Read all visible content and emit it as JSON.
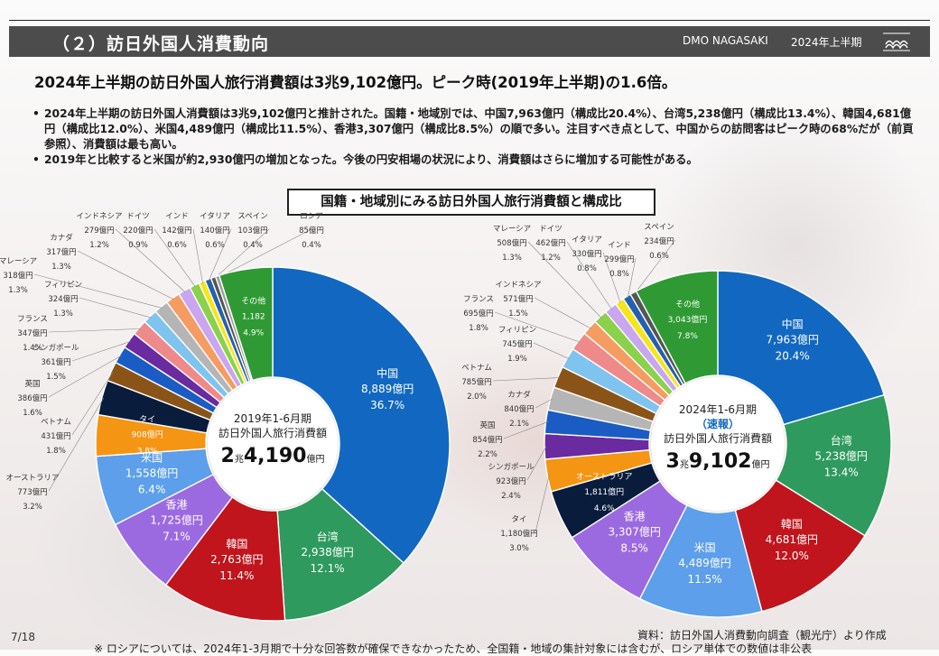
{
  "header": {
    "section_title": "（２）訪日外国人消費動向",
    "org": "DMO NAGASAKI",
    "period": "2024年上半期"
  },
  "headline": "2024年上半期の訪日外国人旅行消費額は3兆9,102億円。ピーク時(2019年上半期)の1.6倍。",
  "bullets": [
    "2024年上半期の訪日外国人消費額は3兆9,102億円と推計された。国籍・地域別では、中国7,963億円（構成比20.4%）、台湾5,238億円（構成比13.4%）、韓国4,681億円（構成比12.0%）、米国4,489億円（構成比11.5%）、香港3,307億円（構成比8.5%）の順で多い。注目すべき点として、中国からの訪問客はピーク時の68%だが（前頁参照）、消費額は最も高い。",
    "2019年と比較すると米国が約2,930億円の増加となった。今後の円安相場の状況により、消費額はさらに増加する可能性がある。"
  ],
  "chart_section_title": "国籍・地域別にみる訪日外国人旅行消費額と構成比",
  "chart_data": [
    {
      "type": "pie",
      "center_lines": [
        "2019年1-6月期",
        "訪日外国人旅行消費額"
      ],
      "center_total": {
        "big1": "2",
        "small1": "兆",
        "big2": "4,190",
        "small2": "億円"
      },
      "unit": "億円",
      "slices": [
        {
          "name": "中国",
          "value": 8889,
          "value_label": "8,889億円",
          "pct_label": "36.7%",
          "color": "#1268c0"
        },
        {
          "name": "台湾",
          "value": 2938,
          "value_label": "2,938億円",
          "pct_label": "12.1%",
          "color": "#2e9a5e"
        },
        {
          "name": "韓国",
          "value": 2763,
          "value_label": "2,763億円",
          "pct_label": "11.4%",
          "color": "#c0151c"
        },
        {
          "name": "香港",
          "value": 1725,
          "value_label": "1,725億円",
          "pct_label": "7.1%",
          "color": "#9c6ae0"
        },
        {
          "name": "米国",
          "value": 1558,
          "value_label": "1,558億円",
          "pct_label": "6.4%",
          "color": "#5d9fea"
        },
        {
          "name": "タイ",
          "value": 908,
          "value_label": "908億円",
          "pct_label": "3.8%",
          "color": "#f49513"
        },
        {
          "name": "オーストラリア",
          "value": 773,
          "value_label": "773億円",
          "pct_label": "3.2%",
          "color": "#091c3c"
        },
        {
          "name": "ベトナム",
          "value": 431,
          "value_label": "431億円",
          "pct_label": "1.8%",
          "color": "#8a5418"
        },
        {
          "name": "英国",
          "value": 386,
          "value_label": "386億円",
          "pct_label": "1.6%",
          "color": "#1a5cc4"
        },
        {
          "name": "シンガポール",
          "value": 361,
          "value_label": "361億円",
          "pct_label": "1.5%",
          "color": "#6a2aa0"
        },
        {
          "name": "フランス",
          "value": 347,
          "value_label": "347億円",
          "pct_label": "1.4%",
          "color": "#ef8a8a"
        },
        {
          "name": "フィリピン",
          "value": 324,
          "value_label": "324億円",
          "pct_label": "1.3%",
          "color": "#7ec4ee"
        },
        {
          "name": "マレーシア",
          "value": 318,
          "value_label": "318億円",
          "pct_label": "1.3%",
          "color": "#b5b5b5"
        },
        {
          "name": "カナダ",
          "value": 317,
          "value_label": "317億円",
          "pct_label": "1.3%",
          "color": "#f59c62"
        },
        {
          "name": "インドネシア",
          "value": 279,
          "value_label": "279億円",
          "pct_label": "1.2%",
          "color": "#c9a6ef"
        },
        {
          "name": "ドイツ",
          "value": 220,
          "value_label": "220億円",
          "pct_label": "0.9%",
          "color": "#8bd14c"
        },
        {
          "name": "インド",
          "value": 142,
          "value_label": "142億円",
          "pct_label": "0.6%",
          "color": "#f4e51c"
        },
        {
          "name": "イタリア",
          "value": 140,
          "value_label": "140億円",
          "pct_label": "0.6%",
          "color": "#2560b0"
        },
        {
          "name": "スペイン",
          "value": 103,
          "value_label": "103億円",
          "pct_label": "0.4%",
          "color": "#555555"
        },
        {
          "name": "ロシア",
          "value": 85,
          "value_label": "85億円",
          "pct_label": "0.4%",
          "color": "#9e9e9e"
        },
        {
          "name": "その他",
          "value": 1182,
          "value_label": "1,182",
          "pct_label": "4.9%",
          "color": "#2f9a34"
        }
      ]
    },
    {
      "type": "pie",
      "center_lines": [
        "2024年1-6月期",
        "（速報）",
        "訪日外国人旅行消費額"
      ],
      "center_total": {
        "big1": "3",
        "small1": "兆",
        "big2": "9,102",
        "small2": "億円"
      },
      "unit": "億円",
      "slices": [
        {
          "name": "中国",
          "value": 7963,
          "value_label": "7,963億円",
          "pct_label": "20.4%",
          "color": "#1268c0"
        },
        {
          "name": "台湾",
          "value": 5238,
          "value_label": "5,238億円",
          "pct_label": "13.4%",
          "color": "#2e9a5e"
        },
        {
          "name": "韓国",
          "value": 4681,
          "value_label": "4,681億円",
          "pct_label": "12.0%",
          "color": "#c0151c"
        },
        {
          "name": "米国",
          "value": 4489,
          "value_label": "4,489億円",
          "pct_label": "11.5%",
          "color": "#5d9fea"
        },
        {
          "name": "香港",
          "value": 3307,
          "value_label": "3,307億円",
          "pct_label": "8.5%",
          "color": "#9c6ae0"
        },
        {
          "name": "オーストラリア",
          "value": 1811,
          "value_label": "1,811億円",
          "pct_label": "4.6%",
          "color": "#091c3c"
        },
        {
          "name": "タイ",
          "value": 1180,
          "value_label": "1,180億円",
          "pct_label": "3.0%",
          "color": "#f49513"
        },
        {
          "name": "シンガポール",
          "value": 923,
          "value_label": "923億円",
          "pct_label": "2.4%",
          "color": "#6a2aa0"
        },
        {
          "name": "英国",
          "value": 854,
          "value_label": "854億円",
          "pct_label": "2.2%",
          "color": "#1a5cc4"
        },
        {
          "name": "カナダ",
          "value": 840,
          "value_label": "840億円",
          "pct_label": "2.1%",
          "color": "#b5b5b5"
        },
        {
          "name": "ベトナム",
          "value": 785,
          "value_label": "785億円",
          "pct_label": "2.0%",
          "color": "#8a5418"
        },
        {
          "name": "フィリピン",
          "value": 745,
          "value_label": "745億円",
          "pct_label": "1.9%",
          "color": "#7ec4ee"
        },
        {
          "name": "フランス",
          "value": 695,
          "value_label": "695億円",
          "pct_label": "1.8%",
          "color": "#ef8a8a"
        },
        {
          "name": "インドネシア",
          "value": 571,
          "value_label": "571億円",
          "pct_label": "1.5%",
          "color": "#f59c62"
        },
        {
          "name": "マレーシア",
          "value": 508,
          "value_label": "508億円",
          "pct_label": "1.3%",
          "color": "#8bd14c"
        },
        {
          "name": "ドイツ",
          "value": 462,
          "value_label": "462億円",
          "pct_label": "1.2%",
          "color": "#c9a6ef"
        },
        {
          "name": "イタリア",
          "value": 330,
          "value_label": "330億円",
          "pct_label": "0.8%",
          "color": "#f4e51c"
        },
        {
          "name": "インド",
          "value": 299,
          "value_label": "299億円",
          "pct_label": "0.8%",
          "color": "#2560b0"
        },
        {
          "name": "スペイン",
          "value": 234,
          "value_label": "234億円",
          "pct_label": "0.6%",
          "color": "#555555"
        },
        {
          "name": "その他",
          "value": 3043,
          "value_label": "3,043億円",
          "pct_label": "7.8%",
          "color": "#2f9a34"
        }
      ]
    }
  ],
  "footer": {
    "source": "資料：訪日外国人消費動向調査（観光庁）より作成",
    "note": "※ ロシアについては、2024年1-3月期で十分な回答数が確保できなかったため、全国籍・地域の集計対象には含むが、ロシア単体での数値は非公表",
    "page": "7/18"
  }
}
